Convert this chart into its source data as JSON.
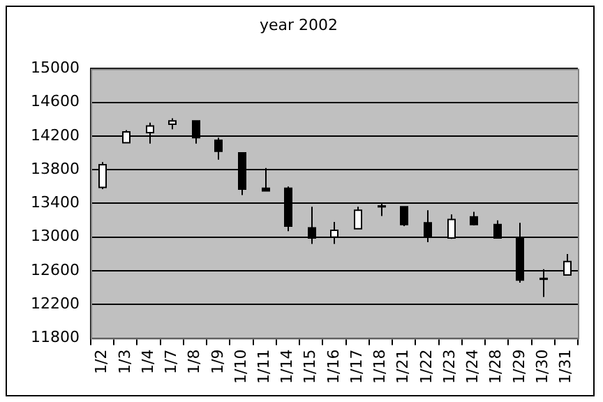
{
  "chart_data": {
    "type": "candlestick",
    "title": "year 2002",
    "categories": [
      "1/2",
      "1/3",
      "1/4",
      "1/7",
      "1/8",
      "1/9",
      "1/10",
      "1/11",
      "1/14",
      "1/15",
      "1/16",
      "1/17",
      "1/18",
      "1/21",
      "1/22",
      "1/23",
      "1/24",
      "1/28",
      "1/29",
      "1/30",
      "1/31"
    ],
    "ohlc": [
      [
        13590,
        13890,
        13570,
        13860
      ],
      [
        14120,
        14270,
        14120,
        14250
      ],
      [
        14240,
        14360,
        14110,
        14320
      ],
      [
        14340,
        14410,
        14280,
        14380
      ],
      [
        14380,
        14380,
        14110,
        14180
      ],
      [
        14150,
        14180,
        13920,
        14020
      ],
      [
        14000,
        14000,
        13500,
        13570
      ],
      [
        13580,
        13820,
        13550,
        13550
      ],
      [
        13580,
        13600,
        13070,
        13130
      ],
      [
        13110,
        13360,
        12920,
        12990
      ],
      [
        13000,
        13180,
        12920,
        13080
      ],
      [
        13100,
        13360,
        13100,
        13320
      ],
      [
        13360,
        13400,
        13250,
        13370
      ],
      [
        13360,
        13360,
        13130,
        13150
      ],
      [
        13170,
        13320,
        12940,
        13000
      ],
      [
        12990,
        13270,
        12980,
        13210
      ],
      [
        13240,
        13300,
        13140,
        13150
      ],
      [
        13150,
        13200,
        12990,
        12990
      ],
      [
        12990,
        13170,
        12460,
        12490
      ],
      [
        12510,
        12620,
        12290,
        12500
      ],
      [
        12550,
        12800,
        12550,
        12710
      ]
    ],
    "ylim": [
      11800,
      15000
    ],
    "yticks": [
      11800,
      12200,
      12600,
      13000,
      13400,
      13800,
      14200,
      14600,
      15000
    ],
    "grid": "y",
    "legend": false
  }
}
